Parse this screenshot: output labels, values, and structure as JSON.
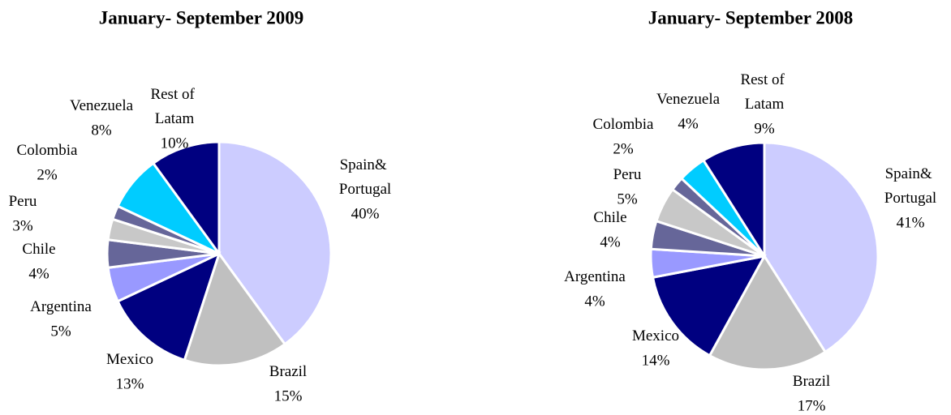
{
  "chart_data": [
    {
      "type": "pie",
      "title": "January- September 2009",
      "categories": [
        "Spain& Portugal",
        "Brazil",
        "Mexico",
        "Argentina",
        "Chile",
        "Peru",
        "Colombia",
        "Venezuela",
        "Rest of Latam"
      ],
      "values": [
        40,
        15,
        13,
        5,
        4,
        3,
        2,
        8,
        10
      ],
      "value_labels": [
        "40%",
        "15%",
        "13%",
        "5%",
        "4%",
        "3%",
        "2%",
        "8%",
        "10%"
      ],
      "colors": [
        "#ccccff",
        "#c0c0c0",
        "#000080",
        "#9999ff",
        "#666699",
        "#c8c8c8",
        "#666699",
        "#00ccff",
        "#000080"
      ]
    },
    {
      "type": "pie",
      "title": "January- September 2008",
      "categories": [
        "Spain& Portugal",
        "Brazil",
        "Mexico",
        "Argentina",
        "Chile",
        "Peru",
        "Colombia",
        "Venezuela",
        "Rest of Latam"
      ],
      "values": [
        41,
        17,
        14,
        4,
        4,
        5,
        2,
        4,
        9
      ],
      "value_labels": [
        "41%",
        "17%",
        "14%",
        "4%",
        "4%",
        "5%",
        "2%",
        "4%",
        "9%"
      ],
      "colors": [
        "#ccccff",
        "#c0c0c0",
        "#000080",
        "#9999ff",
        "#666699",
        "#c8c8c8",
        "#666699",
        "#00ccff",
        "#000080"
      ]
    }
  ]
}
